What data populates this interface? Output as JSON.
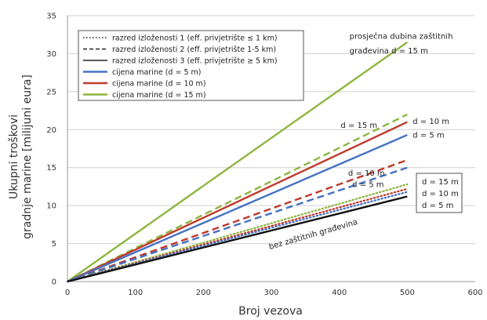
{
  "chart_data": {
    "type": "line",
    "xlabel": "Broj vezova",
    "ylabel_line1": "Ukupni troškovi",
    "ylabel_line2": "gradnje marine [milijuni eura]",
    "xlim": [
      0,
      600
    ],
    "ylim": [
      0,
      35
    ],
    "xticks": [
      0,
      100,
      200,
      300,
      400,
      500,
      600
    ],
    "yticks": [
      0,
      5,
      10,
      15,
      20,
      25,
      30,
      35
    ],
    "grid": "horizontal",
    "legend_position": "top-left",
    "legend": [
      {
        "label": "razred izloženosti 1 (eff. privjetrište ≤ 1 km)",
        "style": "dotted",
        "color": "#222222"
      },
      {
        "label": "razred izloženosti 2 (eff. privjetrište 1-5 km)",
        "style": "dashed",
        "color": "#222222"
      },
      {
        "label": "razred izloženosti 3 (eff. privjetrište ≥ 5 km)",
        "style": "solid",
        "color": "#222222"
      },
      {
        "label": "cijena marine (d = 5 m)",
        "style": "solid",
        "color": "#4472c4"
      },
      {
        "label": "cijena marine (d = 10 m)",
        "style": "solid",
        "color": "#c0392b"
      },
      {
        "label": "cijena marine (d = 15 m)",
        "style": "solid",
        "color": "#8db63f"
      }
    ],
    "series": [
      {
        "depth": "d = 15 m",
        "exposure": "3",
        "style": "solid",
        "color": "#8db63f",
        "x": [
          0,
          500
        ],
        "y": [
          0,
          31.5
        ]
      },
      {
        "depth": "d = 15 m",
        "exposure": "2",
        "style": "dashed",
        "color": "#8db63f",
        "x": [
          0,
          500
        ],
        "y": [
          0,
          22
        ]
      },
      {
        "depth": "d = 10 m",
        "exposure": "3",
        "style": "solid",
        "color": "#c0392b",
        "x": [
          0,
          500
        ],
        "y": [
          0,
          21
        ]
      },
      {
        "depth": "d = 5 m",
        "exposure": "3",
        "style": "solid",
        "color": "#4472c4",
        "x": [
          0,
          500
        ],
        "y": [
          0,
          19.3
        ]
      },
      {
        "depth": "d = 10 m",
        "exposure": "2",
        "style": "dashed",
        "color": "#c0392b",
        "x": [
          0,
          500
        ],
        "y": [
          0,
          16
        ]
      },
      {
        "depth": "d = 5 m",
        "exposure": "2",
        "style": "dashed",
        "color": "#4472c4",
        "x": [
          0,
          500
        ],
        "y": [
          0,
          15
        ]
      },
      {
        "depth": "d = 15 m",
        "exposure": "1",
        "style": "dotted",
        "color": "#8db63f",
        "x": [
          0,
          500
        ],
        "y": [
          0,
          12.8
        ]
      },
      {
        "depth": "d = 10 m",
        "exposure": "1",
        "style": "dotted",
        "color": "#c0392b",
        "x": [
          0,
          500
        ],
        "y": [
          0,
          12.2
        ]
      },
      {
        "depth": "d = 5 m",
        "exposure": "1",
        "style": "dotted",
        "color": "#4472c4",
        "x": [
          0,
          500
        ],
        "y": [
          0,
          11.8
        ]
      },
      {
        "depth": "bez zaštitnih građevina",
        "exposure": "none",
        "style": "solid",
        "color": "#111111",
        "x": [
          0,
          500
        ],
        "y": [
          0,
          11.2
        ]
      }
    ],
    "annotations": [
      {
        "text": "prosječna dubina zaštitnih",
        "x": 415,
        "y": 32.3
      },
      {
        "text": "građevina d = 15 m",
        "x": 415,
        "y": 30.4
      },
      {
        "text": "d = 10 m",
        "x": 508,
        "y": 21.1
      },
      {
        "text": "d = 15 m",
        "x": 402,
        "y": 20.6
      },
      {
        "text": "d = 5 m",
        "x": 508,
        "y": 19.3
      },
      {
        "text": "d = 10 m",
        "x": 413,
        "y": 14.3
      },
      {
        "text": "d = 5 m",
        "x": 419,
        "y": 12.8
      }
    ],
    "boxed_annotation": [
      "d = 15 m",
      "d = 10 m",
      "d = 5 m"
    ],
    "baseline_label": "bez zaštitnih građevina"
  }
}
